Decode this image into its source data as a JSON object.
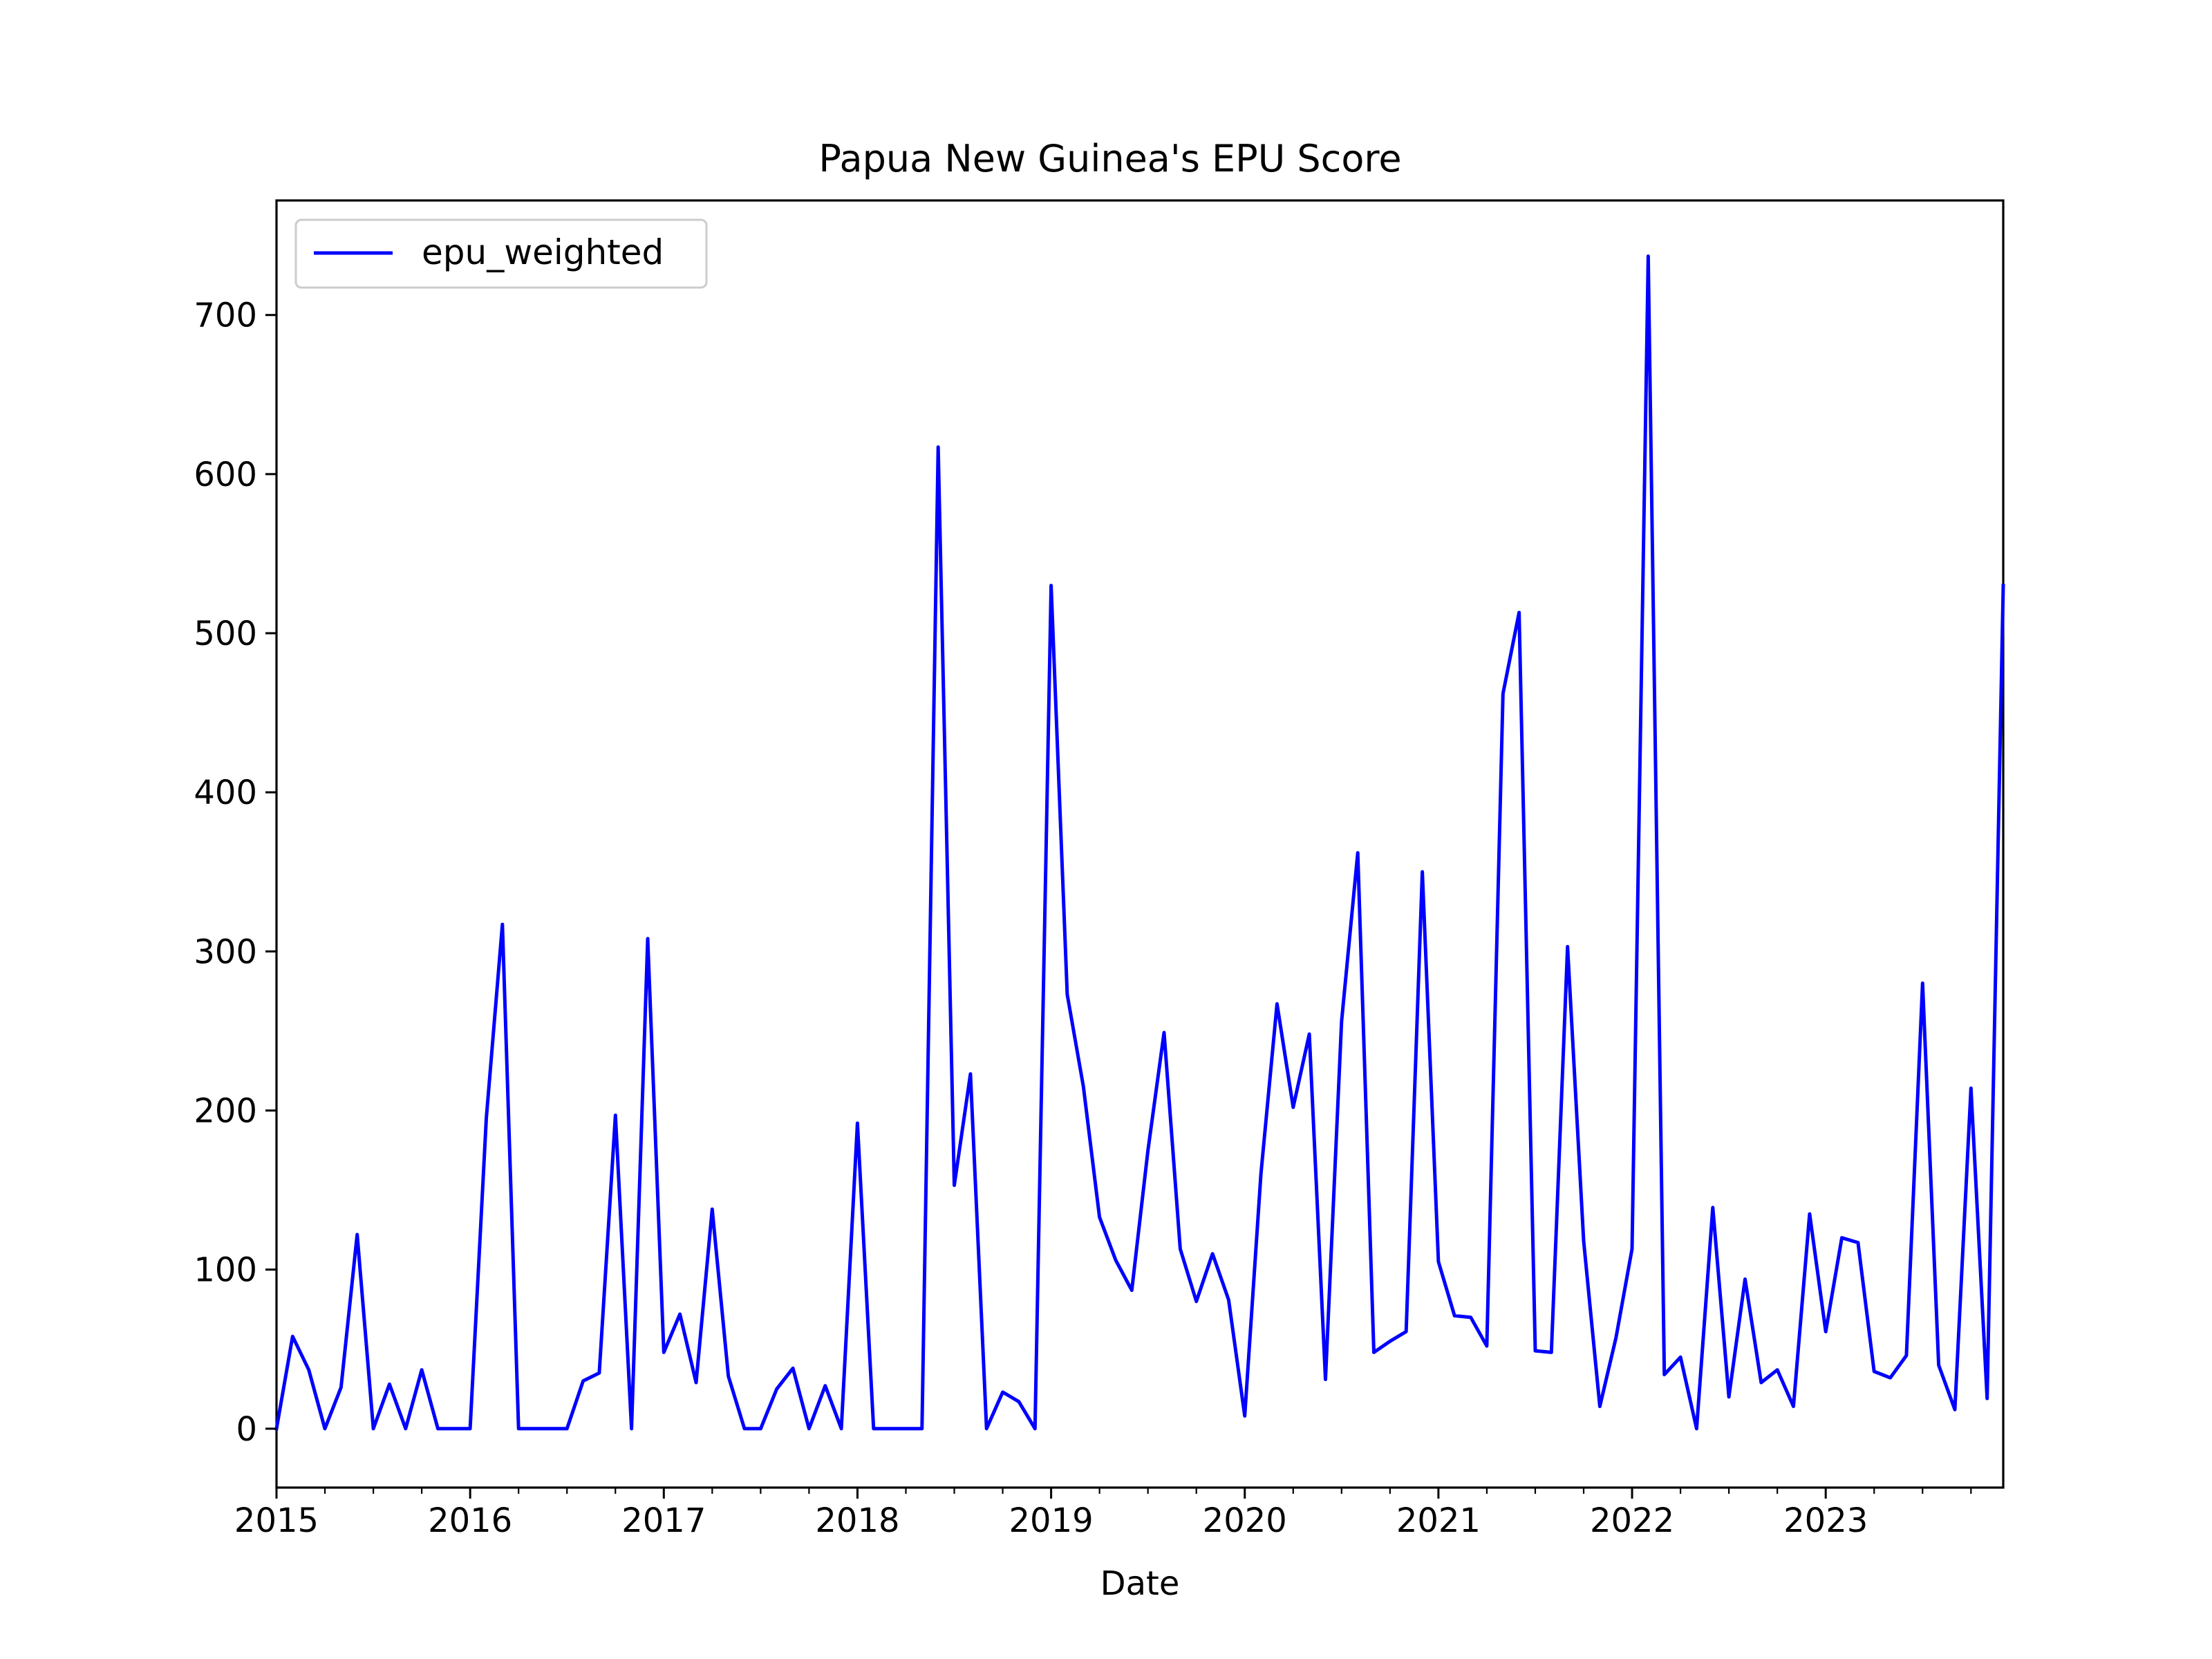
{
  "chart_data": {
    "type": "line",
    "title": "Papua New Guinea's EPU Score",
    "xlabel": "Date",
    "ylabel": "",
    "x_ticks": [
      "2015",
      "2016",
      "2017",
      "2018",
      "2019",
      "2020",
      "2021",
      "2022",
      "2023"
    ],
    "y_ticks": [
      0,
      100,
      200,
      300,
      400,
      500,
      600,
      700
    ],
    "xlim": [
      "2015-01",
      "2023-12"
    ],
    "ylim": [
      -37,
      772
    ],
    "grid": false,
    "legend": "top-left",
    "x": [
      "2015-01",
      "2015-02",
      "2015-03",
      "2015-04",
      "2015-05",
      "2015-06",
      "2015-07",
      "2015-08",
      "2015-09",
      "2015-10",
      "2015-11",
      "2015-12",
      "2016-01",
      "2016-02",
      "2016-03",
      "2016-04",
      "2016-05",
      "2016-06",
      "2016-07",
      "2016-08",
      "2016-09",
      "2016-10",
      "2016-11",
      "2016-12",
      "2017-01",
      "2017-02",
      "2017-03",
      "2017-04",
      "2017-05",
      "2017-06",
      "2017-07",
      "2017-08",
      "2017-09",
      "2017-10",
      "2017-11",
      "2017-12",
      "2018-01",
      "2018-02",
      "2018-03",
      "2018-04",
      "2018-05",
      "2018-06",
      "2018-07",
      "2018-08",
      "2018-09",
      "2018-10",
      "2018-11",
      "2018-12",
      "2019-01",
      "2019-02",
      "2019-03",
      "2019-04",
      "2019-05",
      "2019-06",
      "2019-07",
      "2019-08",
      "2019-09",
      "2019-10",
      "2019-11",
      "2019-12",
      "2020-01",
      "2020-02",
      "2020-03",
      "2020-04",
      "2020-05",
      "2020-06",
      "2020-07",
      "2020-08",
      "2020-09",
      "2020-10",
      "2020-11",
      "2020-12",
      "2021-01",
      "2021-02",
      "2021-03",
      "2021-04",
      "2021-05",
      "2021-06",
      "2021-07",
      "2021-08",
      "2021-09",
      "2021-10",
      "2021-11",
      "2021-12",
      "2022-01",
      "2022-02",
      "2022-03",
      "2022-04",
      "2022-05",
      "2022-06",
      "2022-07",
      "2022-08",
      "2022-09",
      "2022-10",
      "2022-11",
      "2022-12",
      "2023-01",
      "2023-02",
      "2023-03",
      "2023-04",
      "2023-05",
      "2023-06",
      "2023-07",
      "2023-08",
      "2023-09",
      "2023-10",
      "2023-11",
      "2023-12"
    ],
    "series": [
      {
        "name": "epu_weighted",
        "color": "#0000ff",
        "values": [
          0,
          58,
          37,
          0,
          26,
          122,
          0,
          28,
          0,
          37,
          0,
          0,
          0,
          195,
          317,
          0,
          0,
          0,
          0,
          30,
          35,
          197,
          0,
          308,
          48,
          72,
          29,
          138,
          33,
          0,
          0,
          25,
          38,
          0,
          27,
          0,
          192,
          0,
          0,
          0,
          0,
          617,
          153,
          223,
          0,
          23,
          17,
          0,
          530,
          273,
          215,
          133,
          106,
          87,
          175,
          249,
          113,
          80,
          110,
          81,
          8,
          160,
          267,
          202,
          248,
          31,
          256,
          362,
          48,
          55,
          61,
          350,
          105,
          71,
          70,
          52,
          462,
          513,
          49,
          48,
          303,
          118,
          14,
          57,
          113,
          737,
          34,
          45,
          0,
          139,
          20,
          94,
          29,
          37,
          14,
          135,
          61,
          120,
          117,
          36,
          32,
          46,
          280,
          40,
          12,
          214,
          19,
          530
        ]
      }
    ]
  }
}
